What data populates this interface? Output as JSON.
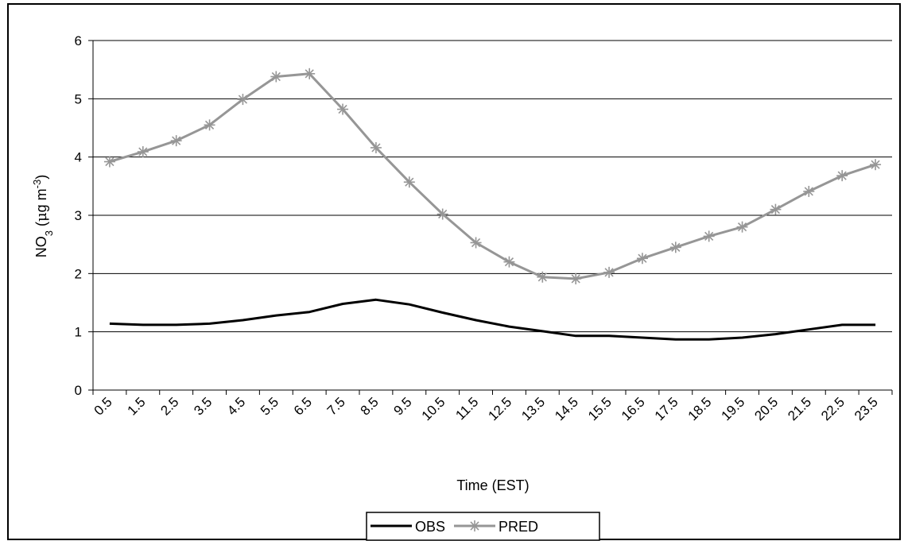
{
  "chart_data": {
    "type": "line",
    "xlabel": "Time (EST)",
    "ylabel_main": "NO",
    "ylabel_sub": "3",
    "ylabel_unit_open": " (",
    "ylabel_mu": "μ",
    "ylabel_unit_rest": "g m",
    "ylabel_sup": "-3",
    "ylabel_unit_close": ")",
    "ylim": [
      0,
      6
    ],
    "yticks": [
      "0",
      "1",
      "2",
      "3",
      "4",
      "5",
      "6"
    ],
    "grid": "horizontal",
    "legend_position": "bottom",
    "categories": [
      "0.5",
      "1.5",
      "2.5",
      "3.5",
      "4.5",
      "5.5",
      "6.5",
      "7.5",
      "8.5",
      "9.5",
      "10.5",
      "11.5",
      "12.5",
      "13.5",
      "14.5",
      "15.5",
      "16.5",
      "17.5",
      "18.5",
      "19.5",
      "20.5",
      "21.5",
      "22.5",
      "23.5"
    ],
    "series": [
      {
        "name": "OBS",
        "color": "#000000",
        "marker": "none",
        "values": [
          1.14,
          1.12,
          1.12,
          1.14,
          1.2,
          1.28,
          1.34,
          1.48,
          1.55,
          1.47,
          1.33,
          1.2,
          1.09,
          1.01,
          0.93,
          0.93,
          0.9,
          0.87,
          0.87,
          0.9,
          0.96,
          1.04,
          1.12,
          1.12
        ]
      },
      {
        "name": "PRED",
        "color": "#969696",
        "marker": "asterisk",
        "values": [
          3.92,
          4.09,
          4.28,
          4.55,
          4.99,
          5.38,
          5.43,
          4.82,
          4.16,
          3.57,
          3.02,
          2.53,
          2.2,
          1.94,
          1.91,
          2.02,
          2.26,
          2.45,
          2.64,
          2.8,
          3.1,
          3.41,
          3.68,
          3.87
        ]
      }
    ]
  }
}
